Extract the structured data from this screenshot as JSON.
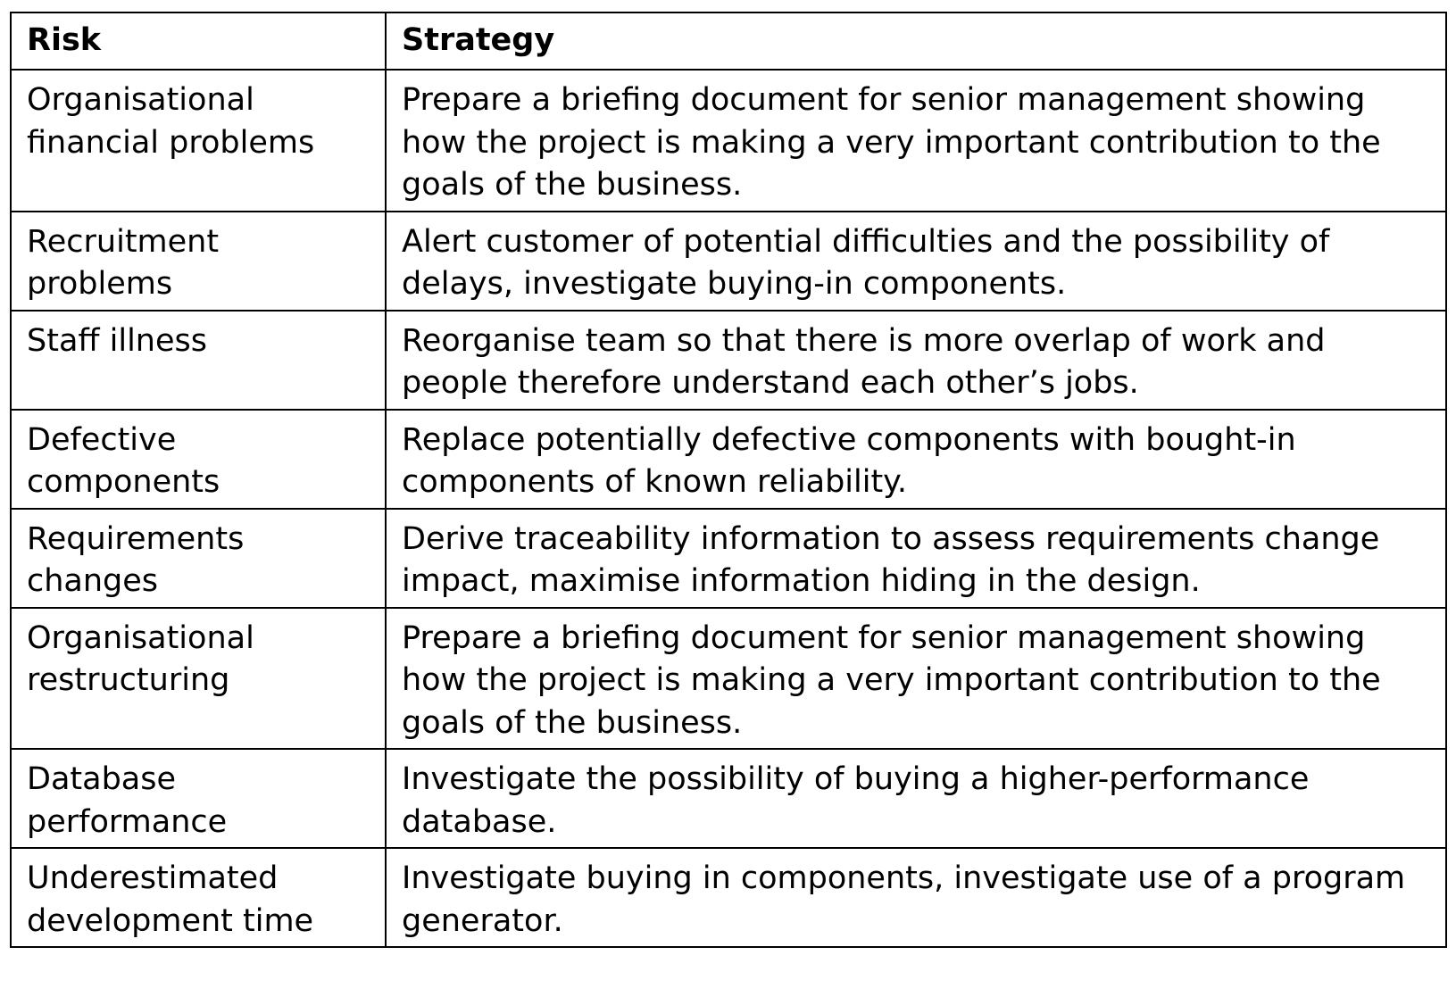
{
  "table": {
    "headers": {
      "risk": "Risk",
      "strategy": "Strategy"
    },
    "rows": [
      {
        "risk": "Organisational financial problems",
        "strategy": "Prepare a briefing document for senior management showing how the project is making a very important contribution to the goals of the business."
      },
      {
        "risk": "Recruitment problems",
        "strategy": "Alert customer of potential difficulties and the possibility of delays, investigate buying-in components."
      },
      {
        "risk": "Staff illness",
        "strategy": "Reorganise team so that there is more overlap of work and people therefore understand each other’s jobs."
      },
      {
        "risk": "Defective components",
        "strategy": "Replace potentially defective components with bought-in components of known reliability."
      },
      {
        "risk": "Requirements changes",
        "strategy": "Derive traceability information to assess requirements change impact, maximise information hiding in the design."
      },
      {
        "risk": "Organisational restructuring",
        "strategy": "Prepare a briefing document for senior management showing how the project is making a very important contribution to the goals of the business."
      },
      {
        "risk": "Database performance",
        "strategy": "Investigate the possibility of buying a higher-performance database."
      },
      {
        "risk": "Underestimated development time",
        "strategy": "Investigate buying in components, investigate use of a program generator."
      }
    ]
  }
}
